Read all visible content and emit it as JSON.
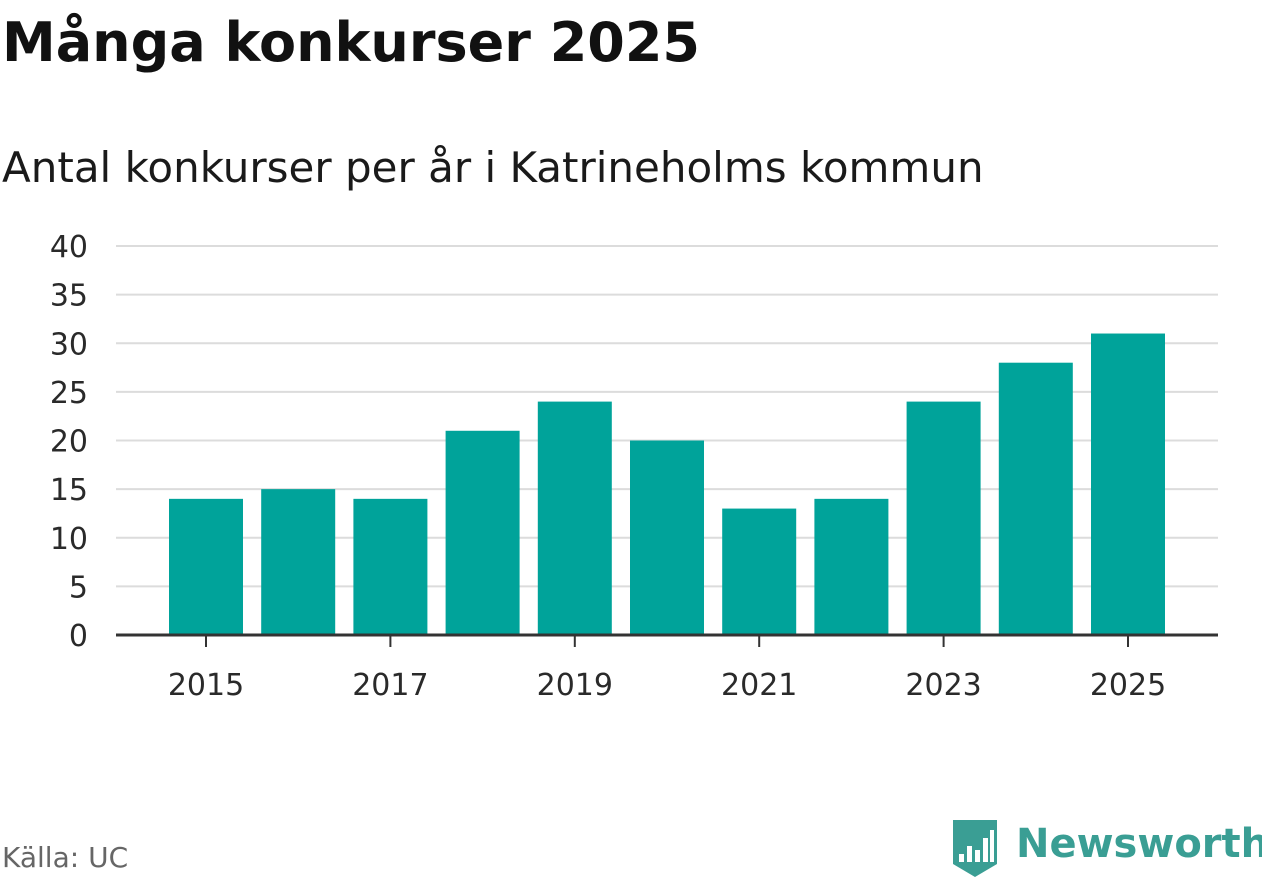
{
  "title": "Många konkurser 2025",
  "subtitle": "Antal konkurser per år i Katrineholms kommun",
  "source": "Källa: UC",
  "brand": {
    "name": "Newsworthy",
    "logo_icon": "newsworthy-logo-icon",
    "color": "#3a9e94"
  },
  "colors": {
    "bar": "#00a39a",
    "grid": "#dcdcdc",
    "axis": "#333333",
    "tick_text": "#2a2a2a"
  },
  "chart_data": {
    "type": "bar",
    "categories": [
      "2015",
      "2016",
      "2017",
      "2018",
      "2019",
      "2020",
      "2021",
      "2022",
      "2023",
      "2024",
      "2025"
    ],
    "values": [
      14,
      15,
      14,
      21,
      24,
      20,
      13,
      14,
      24,
      28,
      31
    ],
    "x_tick_labels": [
      "2015",
      "2017",
      "2019",
      "2021",
      "2023",
      "2025"
    ],
    "y_ticks": [
      0,
      5,
      10,
      15,
      20,
      25,
      30,
      35,
      40
    ],
    "ylim": [
      0,
      40
    ],
    "grid": true,
    "legend": "none"
  }
}
